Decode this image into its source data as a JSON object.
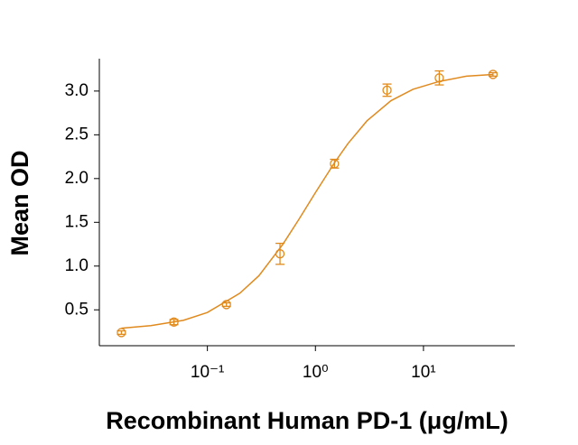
{
  "chart_data": {
    "type": "scatter",
    "xlabel": "Recombinant Human PD-1 (μg/mL)",
    "ylabel": "Mean OD",
    "xscale": "log",
    "xlim": [
      0.01,
      70
    ],
    "ylim": [
      0.09,
      3.37
    ],
    "xticks": [
      {
        "value": 0.1,
        "label": "10⁻¹"
      },
      {
        "value": 1,
        "label": "10⁰"
      },
      {
        "value": 10,
        "label": "10¹"
      }
    ],
    "yticks": [
      0.5,
      {
        "value": 1,
        "label": "1.0"
      },
      1.5,
      {
        "value": 2,
        "label": "2.0"
      },
      2.5,
      {
        "value": 3,
        "label": "3.0"
      }
    ],
    "color": "#e08a1e",
    "x": [
      0.016,
      0.049,
      0.15,
      0.47,
      1.5,
      4.6,
      14,
      44
    ],
    "values": [
      0.24,
      0.36,
      0.56,
      1.14,
      2.17,
      3.01,
      3.15,
      3.19
    ],
    "errors": [
      0.02,
      0.03,
      0.02,
      0.12,
      0.05,
      0.07,
      0.08,
      0.02
    ],
    "curve": {
      "x": [
        0.016,
        0.03,
        0.06,
        0.1,
        0.2,
        0.3,
        0.5,
        0.7,
        1,
        1.5,
        2,
        3,
        5,
        8,
        14,
        25,
        44
      ],
      "y": [
        0.29,
        0.32,
        0.38,
        0.47,
        0.69,
        0.89,
        1.25,
        1.53,
        1.84,
        2.18,
        2.4,
        2.66,
        2.89,
        3.02,
        3.11,
        3.17,
        3.19
      ]
    }
  }
}
